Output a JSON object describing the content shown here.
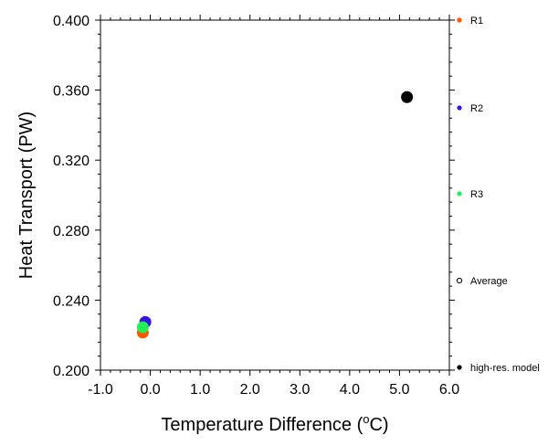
{
  "chart_data": {
    "type": "scatter",
    "title": "",
    "xlabel": "Temperature Difference (",
    "xlabel_sup": "o",
    "xlabel_unit": "C)",
    "ylabel": "Heat Transport (PW)",
    "xlim": [
      -1.0,
      6.0
    ],
    "ylim": [
      0.2,
      0.4
    ],
    "x_ticks": [
      -1.0,
      0.0,
      1.0,
      2.0,
      3.0,
      4.0,
      5.0,
      6.0
    ],
    "x_tick_labels": [
      "-1.0",
      "0.0",
      "1.0",
      "2.0",
      "3.0",
      "4.0",
      "5.0",
      "6.0"
    ],
    "y_ticks": [
      0.2,
      0.24,
      0.28,
      0.32,
      0.36,
      0.4
    ],
    "y_tick_labels": [
      "0.200",
      "0.240",
      "0.280",
      "0.320",
      "0.360",
      "0.400"
    ],
    "grid": false,
    "legend_placement": "right, outside plot",
    "series": [
      {
        "name": "R1",
        "color": "#ff5500",
        "marker": "filled-circle",
        "x": [
          -0.15
        ],
        "y": [
          0.2215
        ]
      },
      {
        "name": "R2",
        "color": "#3a10e5",
        "marker": "filled-circle",
        "x": [
          -0.1
        ],
        "y": [
          0.2275
        ]
      },
      {
        "name": "R3",
        "color": "#22ee55",
        "marker": "filled-circle",
        "x": [
          -0.15
        ],
        "y": [
          0.2245
        ]
      },
      {
        "name": "Average",
        "color": "#000000",
        "marker": "open-circle",
        "x": [],
        "y": []
      },
      {
        "name": "high-res. model",
        "color": "#000000",
        "marker": "filled-circle",
        "x": [
          5.15
        ],
        "y": [
          0.356
        ]
      }
    ]
  }
}
